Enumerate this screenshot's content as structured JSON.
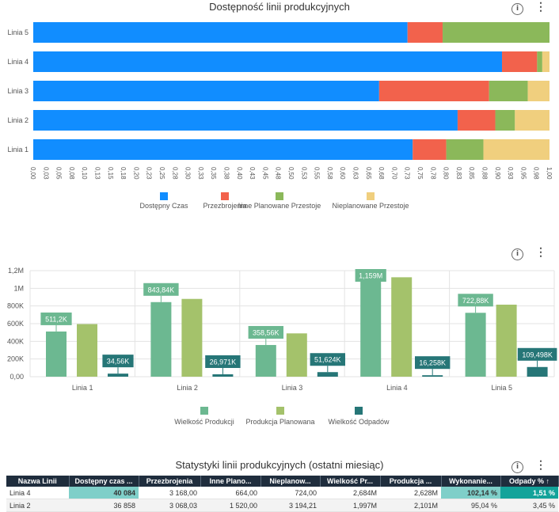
{
  "chart_data": [
    {
      "type": "bar",
      "orientation": "horizontal",
      "stacked": true,
      "title": "Dostępność linii produkcyjnych",
      "categories": [
        "Linia 5",
        "Linia 4",
        "Linia 3",
        "Linia 2",
        "Linia 1"
      ],
      "xlim": [
        0,
        1
      ],
      "x_ticks": [
        "0,00",
        "0,03",
        "0,05",
        "0,08",
        "0,10",
        "0,13",
        "0,15",
        "0,18",
        "0,20",
        "0,23",
        "0,25",
        "0,28",
        "0,30",
        "0,33",
        "0,35",
        "0,38",
        "0,40",
        "0,43",
        "0,45",
        "0,48",
        "0,50",
        "0,53",
        "0,55",
        "0,58",
        "0,60",
        "0,63",
        "0,65",
        "0,68",
        "0,70",
        "0,73",
        "0,75",
        "0,78",
        "0,80",
        "0,83",
        "0,85",
        "0,88",
        "0,90",
        "0,93",
        "0,95",
        "0,98",
        "1,00"
      ],
      "legend_position": "bottom",
      "series": [
        {
          "name": "Dostępny Czas",
          "color": "#118dff",
          "values": [
            0.725,
            0.908,
            0.67,
            0.822,
            0.735
          ]
        },
        {
          "name": "Przezbrojenia",
          "color": "#f2624c",
          "values": [
            0.068,
            0.068,
            0.213,
            0.073,
            0.065
          ]
        },
        {
          "name": "Inne Planowane Przestoje",
          "color": "#8bb85a",
          "values": [
            0.207,
            0.01,
            0.075,
            0.038,
            0.072
          ]
        },
        {
          "name": "Nieplanowane Przestoje",
          "color": "#f0cf7e",
          "values": [
            0.0,
            0.014,
            0.042,
            0.067,
            0.128
          ]
        }
      ]
    },
    {
      "type": "bar",
      "orientation": "vertical",
      "categories": [
        "Linia 1",
        "Linia 2",
        "Linia 3",
        "Linia 4",
        "Linia 5"
      ],
      "ylim": [
        0,
        1200000
      ],
      "y_ticks": [
        "0,00",
        "200K",
        "400K",
        "600K",
        "800K",
        "1M",
        "1,2M"
      ],
      "legend_position": "bottom",
      "series": [
        {
          "name": "Wielkość Produkcji",
          "color": "#6cb891",
          "values": [
            511200,
            843840,
            358560,
            1159000,
            722880
          ],
          "labels": [
            "511,2K",
            "843,84K",
            "358,56K",
            "1,159M",
            "722,88K"
          ]
        },
        {
          "name": "Produkcja Planowana",
          "color": "#a4c26b",
          "values": [
            595000,
            880000,
            490000,
            1125000,
            815000
          ],
          "labels": []
        },
        {
          "name": "Wielkość Odpadów",
          "color": "#267677",
          "values": [
            34560,
            26971,
            51624,
            16258,
            109498
          ],
          "labels": [
            "34,56K",
            "26,971K",
            "51,624K",
            "16,258K",
            "109,498K"
          ]
        }
      ]
    }
  ],
  "table": {
    "title": "Statystyki linii produkcyjnych (ostatni miesiąc)",
    "headers": [
      "Nazwa Linii",
      "Dostępny czas ...",
      "Przezbrojenia",
      "Inne Plano...",
      "Nieplanow...",
      "Wielkość Pr...",
      "Produkcja ...",
      "Wykonanie...",
      "Odpady % ↑"
    ],
    "rows": [
      [
        "Linia 4",
        "40 084",
        "3 168,00",
        "664,00",
        "724,00",
        "2,684M",
        "2,628M",
        "102,14 %",
        "1,51 %"
      ],
      [
        "Linia 2",
        "36 858",
        "3 068,03",
        "1 520,00",
        "3 194,21",
        "1,997M",
        "2,101M",
        "95,04 %",
        "3,45 %"
      ]
    ]
  },
  "icons": {
    "info": "info-icon",
    "more": "more-options-icon"
  },
  "icon_glyphs": {
    "info": "i",
    "more": "⋮"
  }
}
